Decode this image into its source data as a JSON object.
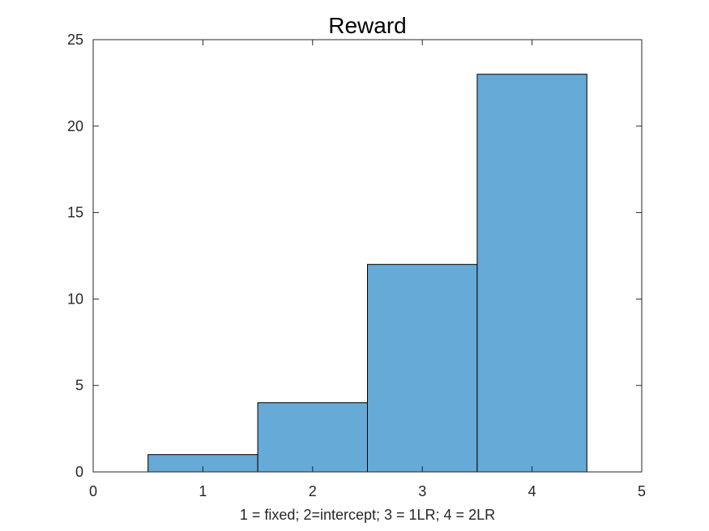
{
  "chart_data": {
    "type": "bar",
    "title": "Reward",
    "xlabel": "1 = fixed; 2=intercept; 3 = 1LR; 4 = 2LR",
    "ylabel": "",
    "categories": [
      "1",
      "2",
      "3",
      "4"
    ],
    "x": [
      1,
      2,
      3,
      4
    ],
    "values": [
      1,
      4,
      12,
      23
    ],
    "bar_width": 1,
    "xlim": [
      0,
      5
    ],
    "ylim": [
      0,
      25
    ],
    "xticks": [
      0,
      1,
      2,
      3,
      4,
      5
    ],
    "yticks": [
      0,
      5,
      10,
      15,
      20,
      25
    ],
    "grid": false,
    "colors": {
      "bar_fill": "#66aad7",
      "bar_edge": "#000000",
      "axis": "#262626"
    }
  }
}
